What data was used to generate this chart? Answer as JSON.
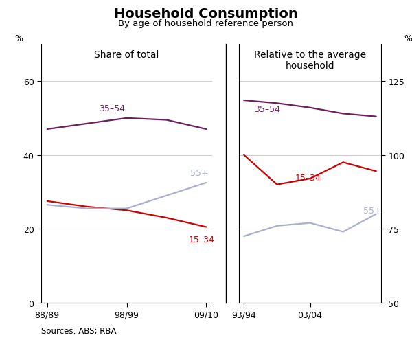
{
  "title": "Household Consumption",
  "subtitle": "By age of household reference person",
  "left_panel_title": "Share of total",
  "right_panel_title": "Relative to the average\nhousehold",
  "left_x": [
    0,
    1,
    2,
    3,
    4
  ],
  "left_35_54": [
    47.0,
    48.5,
    50.0,
    49.5,
    47.0
  ],
  "left_15_34": [
    27.5,
    26.0,
    25.0,
    23.0,
    20.5
  ],
  "left_55plus": [
    26.5,
    25.5,
    25.5,
    29.0,
    32.5
  ],
  "right_x": [
    0,
    1,
    2,
    3,
    4
  ],
  "right_35_54": [
    118.5,
    117.5,
    116.0,
    114.0,
    113.0
  ],
  "right_15_34": [
    100.0,
    90.0,
    92.0,
    97.5,
    94.5
  ],
  "right_55plus": [
    72.5,
    76.0,
    77.0,
    74.0,
    80.0
  ],
  "left_ylim": [
    0,
    70
  ],
  "left_yticks": [
    0,
    20,
    40,
    60
  ],
  "right_ylim": [
    50,
    137.5
  ],
  "right_yticks": [
    50,
    75,
    100,
    125
  ],
  "left_xtick_pos": [
    0,
    2,
    4
  ],
  "left_xtick_labels": [
    "88/89",
    "98/99",
    "09/10"
  ],
  "right_xtick_pos": [
    0,
    2
  ],
  "right_xtick_labels": [
    "93/94",
    "03/04"
  ],
  "color_35_54": "#6b1f5e",
  "color_15_34": "#cc0000",
  "color_55plus": "#aab0cc",
  "sources": "Sources: ABS; RBA",
  "background_color": "#ffffff"
}
